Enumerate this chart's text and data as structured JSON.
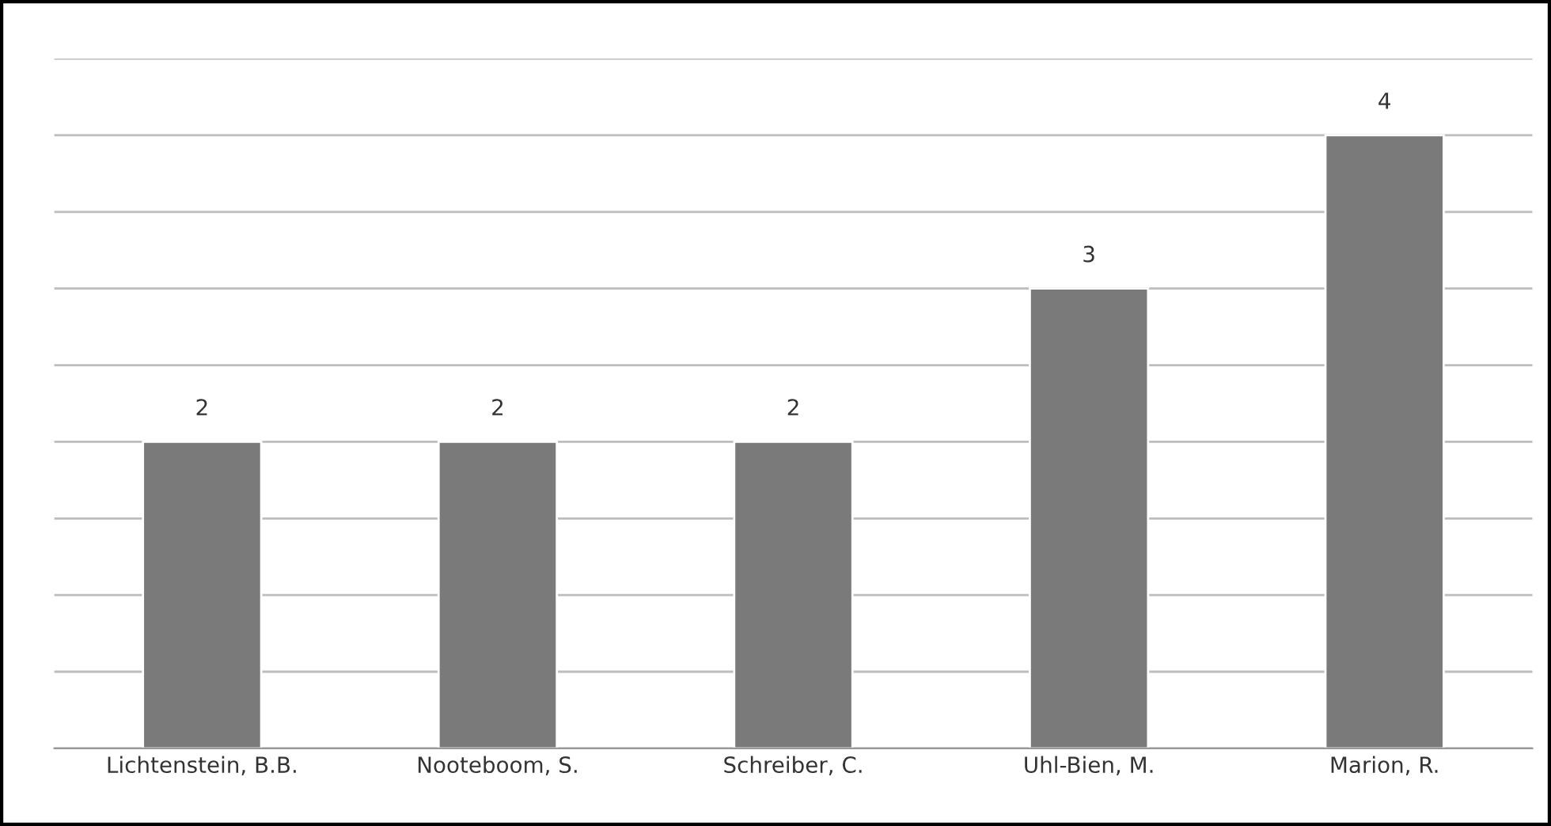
{
  "chart_data": {
    "type": "bar",
    "categories": [
      "Lichtenstein, B.B.",
      "Nooteboom, S.",
      "Schreiber, C.",
      "Uhl-Bien, M.",
      "Marion, R."
    ],
    "values": [
      2,
      2,
      2,
      3,
      4
    ],
    "color": "#7a7a7a",
    "data_labels": true,
    "ylim": [
      0,
      4.5
    ],
    "yticks": [
      {
        "value": 0,
        "label": null
      },
      {
        "value": 0.5,
        "label": null
      },
      {
        "value": 1,
        "label": null
      },
      {
        "value": 1.5,
        "label": null
      },
      {
        "value": 2,
        "label": null
      },
      {
        "value": 2.5,
        "label": null
      },
      {
        "value": 3,
        "label": null
      },
      {
        "value": 3.5,
        "label": null
      },
      {
        "value": 4,
        "label": null
      },
      {
        "value": 4.5,
        "label": null
      }
    ],
    "grid": "y",
    "tick_labels": "x",
    "legend": false
  }
}
